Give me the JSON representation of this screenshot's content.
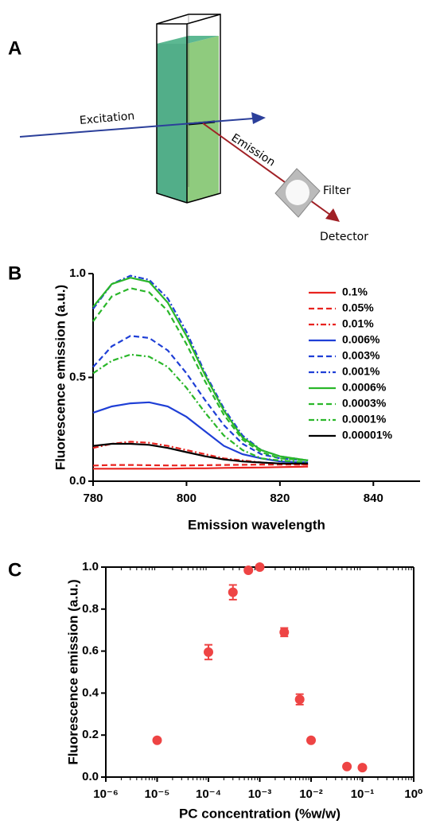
{
  "diagram": {
    "panel_label": "A",
    "labels": [
      "Excitation",
      "Emission",
      "Filter",
      "Detector"
    ]
  },
  "chart_data": [
    {
      "type": "line",
      "panel_label": "B",
      "y_label": "Fluorescence emission (a.u.)",
      "x_label": "Emission wavelength",
      "x": [
        780,
        784,
        788,
        792,
        796,
        800,
        804,
        808,
        812,
        816,
        820,
        826
      ],
      "xlim": [
        780,
        850
      ],
      "xticks": [
        780,
        800,
        820,
        840
      ],
      "ylim": [
        0,
        1
      ],
      "yticks": [
        {
          "value": 0,
          "label": "0.0"
        },
        0.5,
        {
          "value": 1,
          "label": "1.0"
        }
      ],
      "legend": "upper right",
      "series": [
        {
          "name": "0.1%",
          "color": "#e8231f",
          "dash": "solid",
          "values": [
            0.06,
            0.06,
            0.06,
            0.06,
            0.06,
            0.062,
            0.062,
            0.064,
            0.065,
            0.066,
            0.068,
            0.07
          ]
        },
        {
          "name": "0.05%",
          "color": "#e8231f",
          "dash": "dashed",
          "values": [
            0.075,
            0.078,
            0.078,
            0.077,
            0.076,
            0.076,
            0.077,
            0.078,
            0.079,
            0.08,
            0.08,
            0.08
          ]
        },
        {
          "name": "0.01%",
          "color": "#e8231f",
          "dash": "dashdot",
          "values": [
            0.16,
            0.18,
            0.19,
            0.185,
            0.17,
            0.15,
            0.13,
            0.11,
            0.1,
            0.09,
            0.085,
            0.08
          ]
        },
        {
          "name": "0.006%",
          "color": "#1f3fd6",
          "dash": "solid",
          "values": [
            0.33,
            0.36,
            0.375,
            0.38,
            0.36,
            0.31,
            0.24,
            0.17,
            0.13,
            0.11,
            0.095,
            0.09
          ]
        },
        {
          "name": "0.003%",
          "color": "#1f3fd6",
          "dash": "dashed",
          "values": [
            0.55,
            0.65,
            0.7,
            0.69,
            0.63,
            0.52,
            0.39,
            0.27,
            0.18,
            0.13,
            0.11,
            0.1
          ]
        },
        {
          "name": "0.001%",
          "color": "#1f3fd6",
          "dash": "dashdot",
          "values": [
            0.83,
            0.95,
            0.99,
            0.97,
            0.88,
            0.72,
            0.52,
            0.35,
            0.22,
            0.15,
            0.12,
            0.1
          ]
        },
        {
          "name": "0.0006%",
          "color": "#2ab72a",
          "dash": "solid",
          "values": [
            0.84,
            0.95,
            0.98,
            0.96,
            0.86,
            0.7,
            0.51,
            0.34,
            0.21,
            0.15,
            0.12,
            0.1
          ]
        },
        {
          "name": "0.0003%",
          "color": "#2ab72a",
          "dash": "dashed",
          "values": [
            0.77,
            0.89,
            0.93,
            0.91,
            0.82,
            0.66,
            0.48,
            0.32,
            0.2,
            0.14,
            0.11,
            0.1
          ]
        },
        {
          "name": "0.0001%",
          "color": "#2ab72a",
          "dash": "dashdot",
          "values": [
            0.52,
            0.58,
            0.61,
            0.6,
            0.55,
            0.45,
            0.33,
            0.22,
            0.15,
            0.11,
            0.1,
            0.09
          ]
        },
        {
          "name": "0.00001%",
          "color": "#000000",
          "dash": "solid",
          "values": [
            0.17,
            0.18,
            0.18,
            0.175,
            0.16,
            0.14,
            0.12,
            0.105,
            0.095,
            0.09,
            0.085,
            0.085
          ]
        }
      ]
    },
    {
      "type": "scatter",
      "panel_label": "C",
      "y_label": "Fluorescence emission (a.u.)",
      "x_label": "PC concentration (%w/w)",
      "xscale": "log",
      "color": "#ee4444",
      "x": [
        1e-05,
        0.0001,
        0.0003,
        0.0006,
        0.001,
        0.003,
        0.006,
        0.01,
        0.05,
        0.1
      ],
      "values": [
        0.175,
        0.595,
        0.88,
        0.985,
        1.0,
        0.69,
        0.37,
        0.175,
        0.05,
        0.045
      ],
      "errors": [
        0.005,
        0.035,
        0.035,
        0.01,
        0.005,
        0.02,
        0.025,
        0.005,
        0.005,
        0.005
      ],
      "xlim": [
        1e-06,
        1
      ],
      "xticks": [
        {
          "value": 1e-06,
          "label": "10⁻⁶"
        },
        {
          "value": 1e-05,
          "label": "10⁻⁵"
        },
        {
          "value": 0.0001,
          "label": "10⁻⁴"
        },
        {
          "value": 0.001,
          "label": "10⁻³"
        },
        {
          "value": 0.01,
          "label": "10⁻²"
        },
        {
          "value": 0.1,
          "label": "10⁻¹"
        },
        {
          "value": 1,
          "label": "10⁰"
        }
      ],
      "ylim": [
        0,
        1
      ],
      "yticks": [
        {
          "value": 0,
          "label": "0.0"
        },
        0.2,
        0.4,
        0.6,
        0.8,
        {
          "value": 1,
          "label": "1.0"
        }
      ]
    }
  ]
}
